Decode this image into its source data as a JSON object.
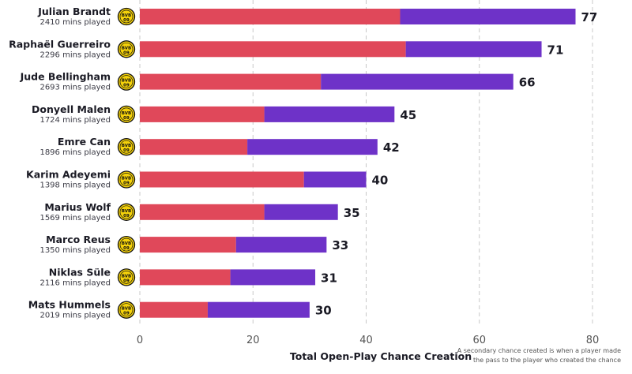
{
  "chart_data": {
    "type": "bar",
    "orientation": "horizontal",
    "stacked": true,
    "xlabel": "Total Open-Play Chance Creation",
    "xlim": [
      0,
      80
    ],
    "xticks": [
      0,
      20,
      40,
      60,
      80
    ],
    "grid": true,
    "note_lines": [
      "A secondary chance created is when a player made",
      "the pass to the player who created the chance"
    ],
    "badge_text": [
      "BVB",
      "09"
    ],
    "colors": {
      "segment_1": "#e0485a",
      "segment_2": "#6e32c8"
    },
    "players": [
      {
        "name": "Julian Brandt",
        "mins": "2410 mins played",
        "segment_1": 46,
        "segment_2": 31,
        "total": 77
      },
      {
        "name": "Raphaël Guerreiro",
        "mins": "2296 mins played",
        "segment_1": 47,
        "segment_2": 24,
        "total": 71
      },
      {
        "name": "Jude Bellingham",
        "mins": "2693 mins played",
        "segment_1": 32,
        "segment_2": 34,
        "total": 66
      },
      {
        "name": "Donyell Malen",
        "mins": "1724 mins played",
        "segment_1": 22,
        "segment_2": 23,
        "total": 45
      },
      {
        "name": "Emre Can",
        "mins": "1896 mins played",
        "segment_1": 19,
        "segment_2": 23,
        "total": 42
      },
      {
        "name": "Karim Adeyemi",
        "mins": "1398 mins played",
        "segment_1": 29,
        "segment_2": 11,
        "total": 40
      },
      {
        "name": "Marius Wolf",
        "mins": "1569 mins played",
        "segment_1": 22,
        "segment_2": 13,
        "total": 35
      },
      {
        "name": "Marco Reus",
        "mins": "1350 mins played",
        "segment_1": 17,
        "segment_2": 16,
        "total": 33
      },
      {
        "name": "Niklas Süle",
        "mins": "2116 mins played",
        "segment_1": 16,
        "segment_2": 15,
        "total": 31
      },
      {
        "name": "Mats Hummels",
        "mins": "2019 mins played",
        "segment_1": 12,
        "segment_2": 18,
        "total": 30
      }
    ]
  }
}
